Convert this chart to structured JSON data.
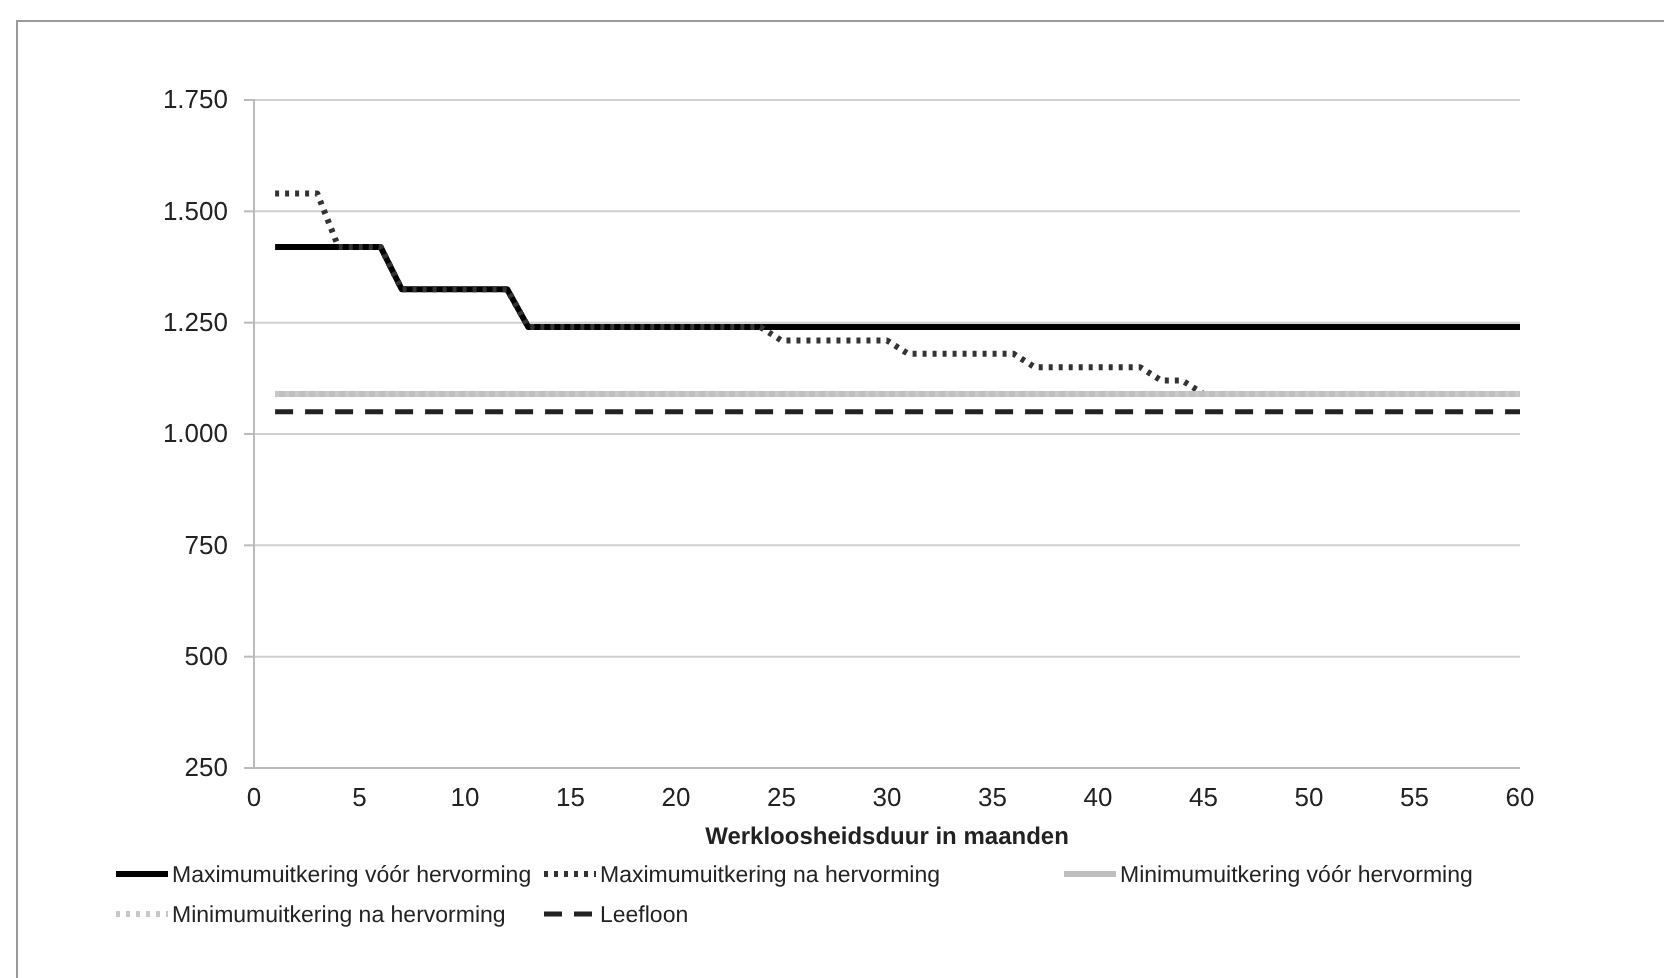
{
  "chart_data": {
    "type": "line",
    "xlabel": "Werkloosheidsduur  in maanden",
    "xlim": [
      0,
      60
    ],
    "xticks": [
      0,
      5,
      10,
      15,
      20,
      25,
      30,
      35,
      40,
      45,
      50,
      55,
      60
    ],
    "ylim": [
      250,
      1750
    ],
    "yticks": [
      {
        "value": 250,
        "label": "250"
      },
      {
        "value": 500,
        "label": "500"
      },
      {
        "value": 750,
        "label": "750"
      },
      {
        "value": 1000,
        "label": "1.000"
      },
      {
        "value": 1250,
        "label": "1.250"
      },
      {
        "value": 1500,
        "label": "1.500"
      },
      {
        "value": 1750,
        "label": "1.750"
      }
    ],
    "grid": "y",
    "legend": "bottom",
    "marker": "none",
    "series": [
      {
        "name": "Maximumuitkering vóór hervorming",
        "color": "#000000",
        "line_style": "solid",
        "x": [
          1,
          6,
          7,
          12,
          13,
          60
        ],
        "values": [
          1420,
          1420,
          1325,
          1325,
          1240,
          1240
        ]
      },
      {
        "name": "Maximumuitkering na hervorming",
        "color": "#333333",
        "line_style": "dotted",
        "x": [
          1,
          3,
          4,
          6,
          7,
          12,
          13,
          24,
          25,
          30,
          31,
          36,
          37,
          42,
          43,
          44,
          45,
          60
        ],
        "values": [
          1540,
          1540,
          1420,
          1420,
          1325,
          1325,
          1240,
          1240,
          1210,
          1210,
          1180,
          1180,
          1150,
          1150,
          1120,
          1120,
          1090,
          1090
        ]
      },
      {
        "name": "Minimumuitkering vóór hervorming",
        "color": "#bfbfbf",
        "line_style": "solid",
        "x": [
          1,
          60
        ],
        "values": [
          1090,
          1090
        ]
      },
      {
        "name": "Minimumuitkering na hervorming",
        "color": "#c8c8c8",
        "line_style": "dotted",
        "x": [
          1,
          60
        ],
        "values": [
          1090,
          1090
        ]
      },
      {
        "name": "Leefloon",
        "color": "#222222",
        "line_style": "dashed",
        "x": [
          1,
          60
        ],
        "values": [
          1050,
          1050
        ]
      }
    ]
  }
}
